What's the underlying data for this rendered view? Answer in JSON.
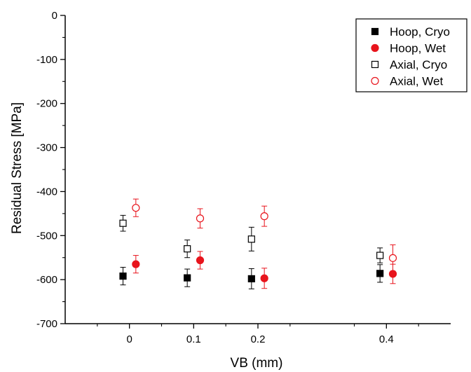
{
  "chart_data": {
    "type": "scatter",
    "xlabel": "VB (mm)",
    "ylabel": "Residual Stress [MPa]",
    "xlim": [
      -0.1,
      0.5
    ],
    "ylim": [
      -700,
      0
    ],
    "x_ticks": [
      {
        "value": 0,
        "label": "0"
      },
      {
        "value": 0.1,
        "label": "0.1"
      },
      {
        "value": 0.2,
        "label": "0.2"
      },
      {
        "value": 0.4,
        "label": "0.4"
      }
    ],
    "y_ticks": [
      {
        "value": 0,
        "label": "0"
      },
      {
        "value": -100,
        "label": "-100"
      },
      {
        "value": -200,
        "label": "-200"
      },
      {
        "value": -300,
        "label": "-300"
      },
      {
        "value": -400,
        "label": "-400"
      },
      {
        "value": -500,
        "label": "-500"
      },
      {
        "value": -600,
        "label": "-600"
      },
      {
        "value": -700,
        "label": "-700"
      }
    ],
    "grid": false,
    "legend_position": "top-right",
    "series": [
      {
        "name": "Hoop, Cryo",
        "color": "#000000",
        "marker": "square",
        "filled": true,
        "x": [
          0,
          0.1,
          0.2,
          0.4
        ],
        "y": [
          -592,
          -596,
          -598,
          -586
        ],
        "err": [
          20,
          20,
          23,
          20
        ],
        "offset": -0.01
      },
      {
        "name": "Hoop, Wet",
        "color": "#e8141c",
        "marker": "circle",
        "filled": true,
        "x": [
          0,
          0.1,
          0.2,
          0.4
        ],
        "y": [
          -565,
          -556,
          -597,
          -587
        ],
        "err": [
          20,
          20,
          23,
          22
        ],
        "offset": 0.01
      },
      {
        "name": "Axial, Cryo",
        "color": "#000000",
        "marker": "square",
        "filled": false,
        "x": [
          0,
          0.1,
          0.2,
          0.4
        ],
        "y": [
          -472,
          -530,
          -508,
          -545
        ],
        "err": [
          18,
          20,
          27,
          17
        ],
        "offset": -0.01
      },
      {
        "name": "Axial, Wet",
        "color": "#e8141c",
        "marker": "circle",
        "filled": false,
        "x": [
          0,
          0.1,
          0.2,
          0.4
        ],
        "y": [
          -437,
          -461,
          -456,
          -551
        ],
        "err": [
          20,
          22,
          23,
          30
        ],
        "offset": 0.01
      }
    ]
  }
}
